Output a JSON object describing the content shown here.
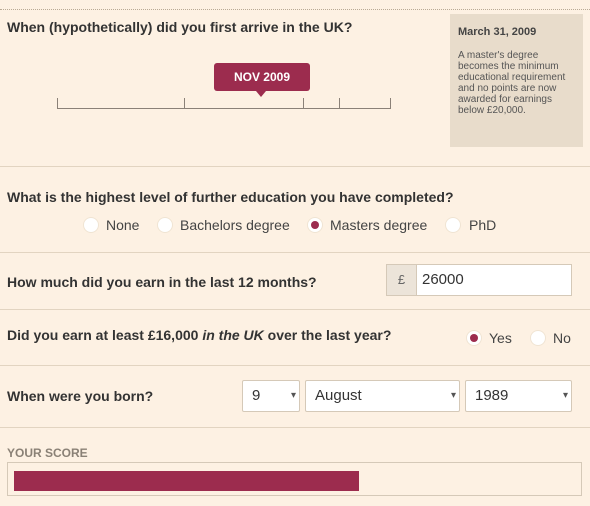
{
  "q1": {
    "question": "When (hypothetically) did you first arrive in the UK?",
    "selected_label": "NOV 2009"
  },
  "note": {
    "title": "March 31, 2009",
    "body": "A master's degree becomes the minimum educational requirement and no points are now awarded for earnings below £20,000."
  },
  "q2": {
    "question": "What is the highest level of further education you have completed?",
    "options": [
      "None",
      "Bachelors degree",
      "Masters degree",
      "PhD"
    ],
    "selected": "Masters degree"
  },
  "q3": {
    "question": "How much did you earn in the last 12 months?",
    "currency": "£",
    "value": "26000"
  },
  "q4": {
    "question_pre": "Did you earn at least £16,000 ",
    "question_em": "in the UK",
    "question_post": " over the last year?",
    "options": [
      "Yes",
      "No"
    ],
    "selected": "Yes"
  },
  "q5": {
    "question": "When were you born?",
    "day": "9",
    "month": "August",
    "year": "1989"
  },
  "score": {
    "label": "YOUR SCORE",
    "fraction": 0.615
  },
  "colors": {
    "accent": "#9c2c4e",
    "background": "#fdf1e3",
    "note_background": "#e8dccb"
  }
}
